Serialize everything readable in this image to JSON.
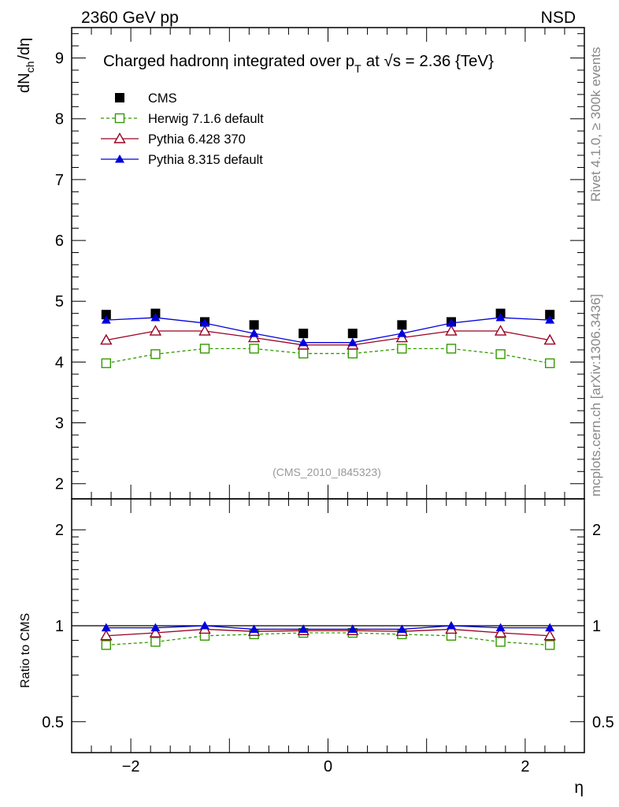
{
  "header": {
    "left_label": "2360 GeV pp",
    "right_label": "NSD"
  },
  "side": {
    "rivet_label": "Rivet 4.1.0, ≥ 300k events",
    "mcplots_label": "mcplots.cern.ch [arXiv:1306.3436]"
  },
  "colors": {
    "cms": "#000000",
    "herwig": "#339900",
    "pythia6": "#990022",
    "pythia8": "#0000dd",
    "watermark": "#999999"
  },
  "chart_data": [
    {
      "type": "line",
      "panel": "main",
      "title": "Charged hadron",
      "title_math": "η integrated over p",
      "title_sub": "T",
      "title_sqrt": "at √s = 2.36 {TeV}",
      "ylabel_base": "dN",
      "ylabel_sub": "ch",
      "ylabel_tail": "/dη",
      "xlabel": "η",
      "ylim": [
        1.75,
        9.5
      ],
      "xlim": [
        -2.6,
        2.6
      ],
      "yticks": [
        2,
        3,
        4,
        5,
        6,
        7,
        8,
        9
      ],
      "watermark": "(CMS_2010_I845323)",
      "x": [
        -2.25,
        -1.75,
        -1.25,
        -0.75,
        -0.25,
        0.25,
        0.75,
        1.25,
        1.75,
        2.25
      ],
      "series": [
        {
          "name": "CMS",
          "key": "cms",
          "marker": "square-filled",
          "values": [
            4.78,
            4.8,
            4.66,
            4.61,
            4.47,
            4.47,
            4.61,
            4.66,
            4.8,
            4.78
          ]
        },
        {
          "name": "Herwig 7.1.6 default",
          "key": "herwig",
          "marker": "square-open",
          "dashed": true,
          "values": [
            3.98,
            4.13,
            4.22,
            4.22,
            4.14,
            4.14,
            4.22,
            4.22,
            4.13,
            3.98
          ]
        },
        {
          "name": "Pythia 6.428 370",
          "key": "pythia6",
          "marker": "triangle-open",
          "values": [
            4.36,
            4.51,
            4.51,
            4.4,
            4.28,
            4.28,
            4.4,
            4.51,
            4.51,
            4.36
          ]
        },
        {
          "name": "Pythia 8.315 default",
          "key": "pythia8",
          "marker": "triangle-filled",
          "values": [
            4.69,
            4.73,
            4.64,
            4.47,
            4.32,
            4.32,
            4.47,
            4.64,
            4.73,
            4.69
          ]
        }
      ],
      "legend": "top-left"
    },
    {
      "type": "line",
      "panel": "ratio",
      "ylabel": "Ratio to CMS",
      "xlabel": "η",
      "ylim": [
        0.4,
        2.5
      ],
      "log_y": true,
      "yticks": [
        0.5,
        1,
        2
      ],
      "xticks": [
        -2,
        0,
        2
      ],
      "xtick_labels": [
        "−2",
        "0",
        "2"
      ],
      "reference": 1,
      "x": [
        -2.25,
        -1.75,
        -1.25,
        -0.75,
        -0.25,
        0.25,
        0.75,
        1.25,
        1.75,
        2.25
      ],
      "series": [
        {
          "name": "Herwig 7.1.6 default",
          "key": "herwig",
          "marker": "square-open",
          "dashed": true,
          "values": [
            0.87,
            0.89,
            0.93,
            0.94,
            0.95,
            0.95,
            0.94,
            0.93,
            0.89,
            0.87
          ]
        },
        {
          "name": "Pythia 6.428 370",
          "key": "pythia6",
          "marker": "triangle-open",
          "values": [
            0.93,
            0.95,
            0.975,
            0.96,
            0.965,
            0.965,
            0.96,
            0.975,
            0.95,
            0.93
          ]
        },
        {
          "name": "Pythia 8.315 default",
          "key": "pythia8",
          "marker": "triangle-filled",
          "values": [
            0.985,
            0.985,
            1.0,
            0.975,
            0.975,
            0.975,
            0.975,
            1.0,
            0.985,
            0.985
          ]
        }
      ]
    }
  ]
}
